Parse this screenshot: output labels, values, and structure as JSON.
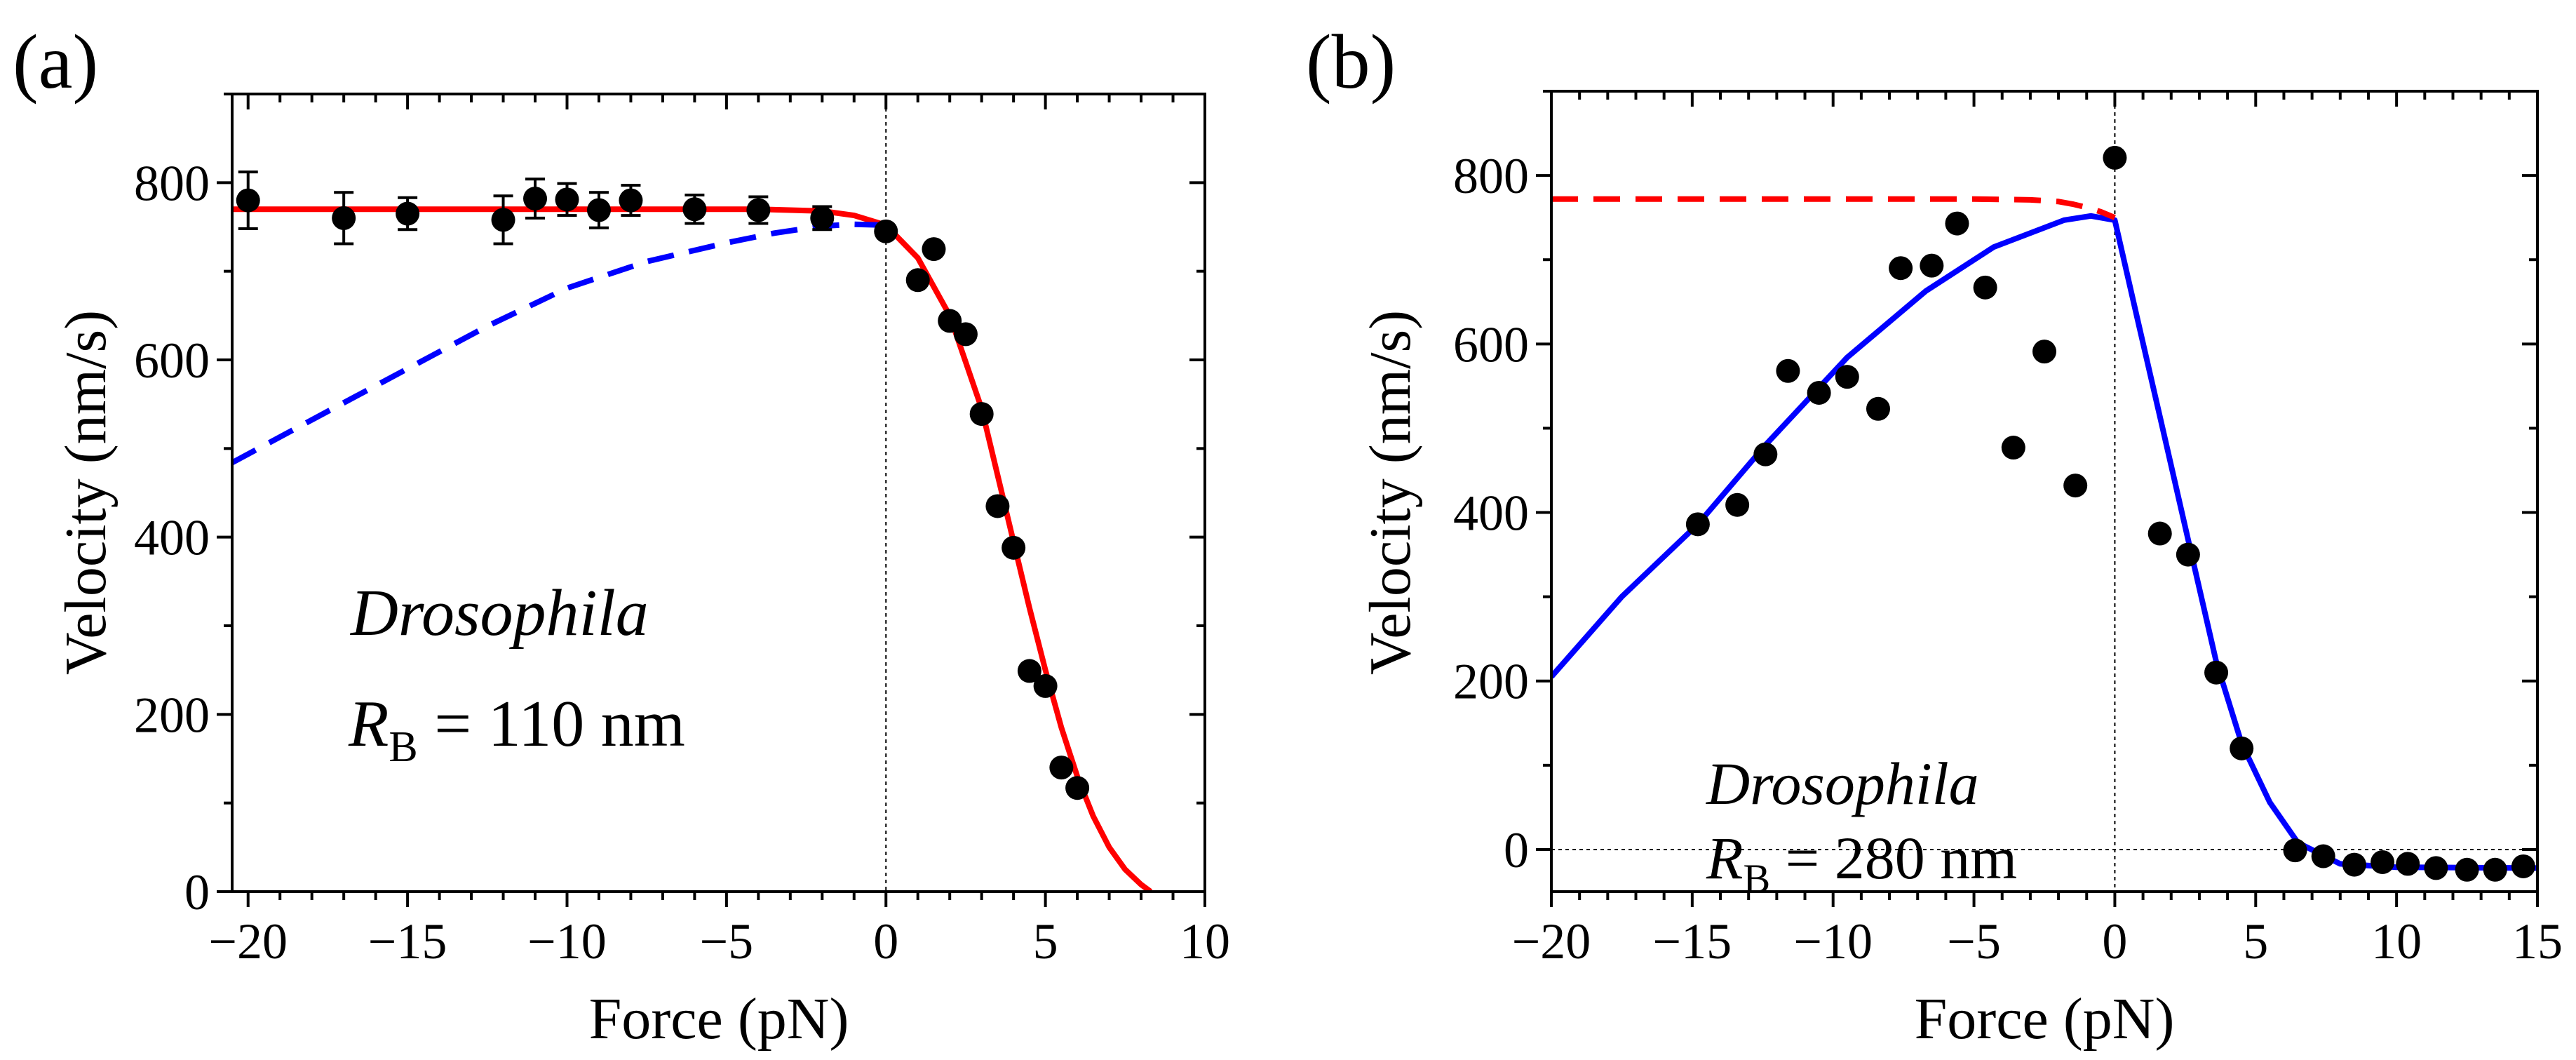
{
  "chart_data": [
    {
      "type": "scatter",
      "panel_label": "(a)",
      "xlabel": "Force (pN)",
      "ylabel": "Velocity (nm/s)",
      "xlim": [
        -20.5,
        10
      ],
      "ylim": [
        0,
        900
      ],
      "xticks": [
        -20,
        -15,
        -10,
        -5,
        0,
        5,
        10
      ],
      "xtick_labels": [
        "−20",
        "−15",
        "−10",
        "−5",
        "0",
        "5",
        "10"
      ],
      "yticks": [
        0,
        200,
        400,
        600,
        800
      ],
      "ytick_labels": [
        "0",
        "200",
        "400",
        "600",
        "800"
      ],
      "annotation": {
        "species": "Drosophila",
        "rb_symbol": "R",
        "rb_sub": "B",
        "rb_value": " = 110 nm"
      },
      "reference_lines": {
        "vertical_x": 0
      },
      "points": {
        "x": [
          -20,
          -17,
          -15,
          -12,
          -11,
          -10,
          -9,
          -8,
          -6,
          -4,
          -2,
          0,
          1,
          1.5,
          2,
          2.5,
          3,
          3.5,
          4,
          4.5,
          5,
          5.5,
          6
        ],
        "y": [
          780,
          760,
          765,
          758,
          782,
          781,
          769,
          780,
          770,
          769,
          760,
          745,
          690,
          725,
          644,
          629,
          539,
          435,
          388,
          249,
          232,
          140,
          117
        ],
        "yerr": [
          32,
          29,
          18,
          27,
          22,
          18,
          20,
          17,
          16,
          15,
          13,
          0,
          0,
          0,
          0,
          0,
          0,
          0,
          0,
          0,
          0,
          0,
          0
        ]
      },
      "curves": [
        {
          "name": "fit-solid",
          "color": "#ff0000",
          "style": "solid",
          "x": [
            -20.5,
            -4,
            -2,
            -1,
            0,
            1,
            2,
            3,
            3.5,
            4,
            4.5,
            5,
            5.5,
            6,
            6.5,
            7,
            7.5,
            8,
            8.3
          ],
          "y": [
            770,
            770,
            768,
            763,
            752,
            715,
            650,
            545,
            470,
            395,
            320,
            250,
            185,
            130,
            85,
            50,
            25,
            8,
            0
          ]
        },
        {
          "name": "fit-dashed",
          "color": "#0000ff",
          "style": "dashed",
          "x": [
            -20.5,
            -17.5,
            -15,
            -12.5,
            -10,
            -7.5,
            -5,
            -3.5,
            -2,
            -1,
            0
          ],
          "y": [
            484,
            542,
            590,
            638,
            681,
            711,
            732,
            743,
            751,
            753,
            752
          ]
        }
      ]
    },
    {
      "type": "scatter",
      "panel_label": "(b)",
      "xlabel": "Force (pN)",
      "ylabel": "Velocity (nm/s)",
      "xlim": [
        -20,
        15
      ],
      "ylim": [
        -50,
        900
      ],
      "xticks": [
        -20,
        -15,
        -10,
        -5,
        0,
        5,
        10,
        15
      ],
      "xtick_labels": [
        "−20",
        "−15",
        "−10",
        "−5",
        "0",
        "5",
        "10",
        "15"
      ],
      "yticks": [
        0,
        200,
        400,
        600,
        800
      ],
      "ytick_labels": [
        "0",
        "200",
        "400",
        "600",
        "800"
      ],
      "annotation": {
        "species": "Drosophila",
        "rb_symbol": "R",
        "rb_sub": "B",
        "rb_value": " = 280 nm"
      },
      "reference_lines": {
        "vertical_x": 0,
        "horizontal_y": 0
      },
      "points": {
        "x": [
          -14.8,
          -13.4,
          -12.4,
          -11.6,
          -10.5,
          -9.5,
          -8.4,
          -7.6,
          -6.5,
          -5.6,
          -4.6,
          -3.6,
          -2.5,
          -1.4,
          0,
          1.6,
          2.6,
          3.6,
          4.5,
          6.4,
          7.4,
          8.5,
          9.5,
          10.4,
          11.4,
          12.5,
          13.5,
          14.5
        ],
        "y": [
          386,
          409,
          469,
          568,
          542,
          561,
          523,
          690,
          693,
          743,
          667,
          477,
          591,
          432,
          821,
          375,
          350,
          210,
          120,
          -1,
          -8,
          -18,
          -15,
          -17,
          -22,
          -24,
          -24,
          -20
        ]
      },
      "curves": [
        {
          "name": "fit-solid",
          "color": "#0000ff",
          "style": "solid",
          "x": [
            -20,
            -17.5,
            -14.8,
            -12.4,
            -9.5,
            -6.7,
            -4.3,
            -1.8,
            -0.85,
            0,
            0.8,
            1.6,
            2.6,
            3.6,
            4.5,
            5.5,
            6.5,
            8,
            10,
            15
          ],
          "y": [
            205,
            300,
            386,
            480,
            584,
            663,
            715,
            747,
            752,
            747,
            630,
            514,
            368,
            223,
            126,
            56,
            8,
            -17,
            -21,
            -22
          ]
        },
        {
          "name": "fit-dashed",
          "color": "#ff0000",
          "style": "dashed",
          "x": [
            -20,
            -5,
            -3,
            -2,
            -1.5,
            -1,
            -0.5,
            0
          ],
          "y": [
            772,
            772,
            771,
            769,
            766,
            762,
            757,
            750
          ]
        }
      ]
    }
  ]
}
